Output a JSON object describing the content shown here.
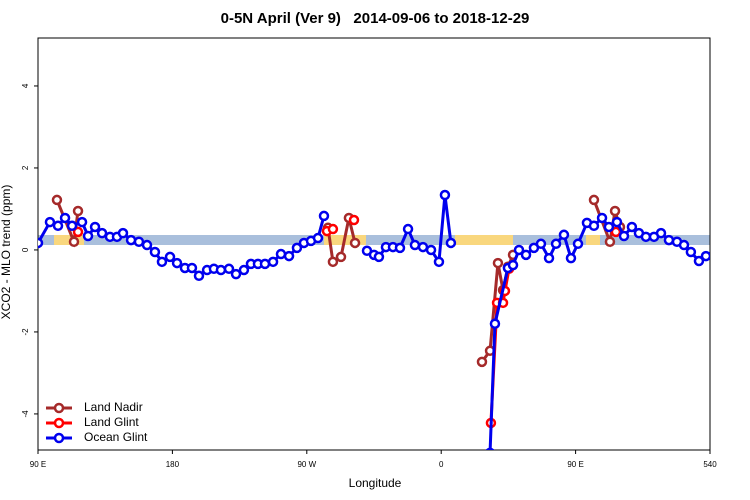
{
  "chart_data": {
    "type": "line",
    "title": "0-5N April (Ver 9)   2014-09-06 to 2018-12-29",
    "x_label": "Longitude",
    "y_label": "XCO2 - MLO trend (ppm)",
    "xlim": [
      90,
      540
    ],
    "ylim": [
      -4.88,
      5.17
    ],
    "xticks": [
      {
        "value": 90,
        "label": "90 E"
      },
      180,
      {
        "value": 270,
        "label": "90 W"
      },
      {
        "value": 360,
        "label": "0"
      },
      {
        "value": 450,
        "label": "90 E"
      },
      540
    ],
    "yticks": [
      -4,
      -2,
      0,
      2,
      4
    ],
    "legend": "bottomleft",
    "series": [
      {
        "name": "Land Nadir",
        "color": "#a52a2a",
        "x": [
          102.7,
          114.1,
          116.8,
          null,
          284.2,
          287.5,
          292.9,
          298.2,
          302.3,
          null,
          387.3,
          392.7,
          398.0,
          401.4,
          404.7,
          408.1,
          null,
          462.3,
          473.0,
          476.4,
          479.7
        ],
        "values": [
          1.22,
          0.2,
          0.95,
          null,
          0.54,
          -0.29,
          -0.17,
          0.78,
          0.17,
          null,
          -2.73,
          -2.46,
          -0.32,
          -0.98,
          -0.41,
          -0.12,
          null,
          1.22,
          0.2,
          0.95,
          0.56
        ]
      },
      {
        "name": "Land Glint",
        "color": "#ff0000",
        "x": [
          116.8,
          null,
          283.5,
          287.5,
          null,
          301.6,
          null,
          393.3,
          397.4,
          401.4,
          402.7,
          405.4,
          null,
          477.0
        ],
        "values": [
          0.44,
          null,
          0.46,
          0.51,
          null,
          0.73,
          null,
          -4.22,
          -1.29,
          -1.29,
          -1.0,
          -0.46,
          null,
          0.44
        ]
      },
      {
        "name": "Ocean Glint",
        "color": "#0000ee",
        "x": [
          90.0,
          98.0,
          103.4,
          108.1,
          112.8,
          119.5,
          123.5,
          128.2,
          132.9,
          138.2,
          142.9,
          146.9,
          152.3,
          157.6,
          163.0,
          168.3,
          173.0,
          178.4,
          183.1,
          188.4,
          193.1,
          197.8,
          203.2,
          207.8,
          212.5,
          217.9,
          222.6,
          227.9,
          232.6,
          237.3,
          242.0,
          247.4,
          252.7,
          258.1,
          263.4,
          268.1,
          272.8,
          277.5,
          281.5,
          null,
          310.3,
          315.0,
          318.3,
          323.0,
          327.7,
          332.4,
          337.8,
          342.4,
          347.8,
          353.2,
          358.5,
          362.5,
          366.5,
          null,
          392.7,
          396.0,
          404.7,
          408.1,
          412.1,
          416.8,
          422.1,
          426.8,
          432.2,
          436.9,
          442.2,
          446.9,
          451.6,
          457.6,
          462.3,
          467.7,
          472.3,
          477.7,
          482.4,
          487.7,
          492.4,
          497.1,
          502.5,
          507.2,
          512.5,
          517.9,
          522.6,
          527.2,
          532.6,
          537.3
        ],
        "values": [
          0.17,
          0.68,
          0.59,
          0.78,
          0.59,
          0.68,
          0.34,
          0.56,
          0.41,
          0.32,
          0.32,
          0.41,
          0.24,
          0.2,
          0.12,
          -0.05,
          -0.29,
          -0.17,
          -0.32,
          -0.44,
          -0.44,
          -0.63,
          -0.49,
          -0.46,
          -0.49,
          -0.46,
          -0.59,
          -0.49,
          -0.34,
          -0.34,
          -0.34,
          -0.29,
          -0.1,
          -0.15,
          0.05,
          0.17,
          0.22,
          0.29,
          0.83,
          null,
          -0.02,
          -0.12,
          -0.17,
          0.07,
          0.07,
          0.05,
          0.51,
          0.12,
          0.07,
          0,
          -0.29,
          1.34,
          0.17,
          null,
          -4.95,
          -1.8,
          -0.44,
          -0.37,
          0,
          -0.12,
          0.05,
          0.15,
          -0.2,
          0.15,
          0.37,
          -0.2,
          0.15,
          0.66,
          0.59,
          0.78,
          0.56,
          0.68,
          0.34,
          0.56,
          0.41,
          0.32,
          0.32,
          0.41,
          0.24,
          0.2,
          0.12,
          -0.05,
          -0.27,
          -0.15
        ]
      }
    ]
  }
}
